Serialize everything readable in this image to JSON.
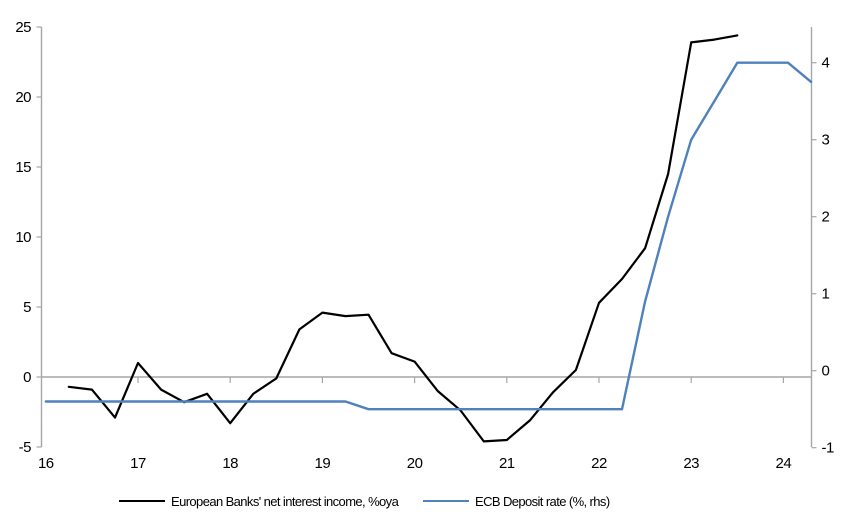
{
  "chart_data": {
    "type": "line",
    "title": "",
    "x_axis": {
      "ticks": [
        16,
        17,
        18,
        19,
        20,
        21,
        22,
        23,
        24
      ],
      "tick_labels": [
        "16",
        "17",
        "18",
        "19",
        "20",
        "21",
        "22",
        "23",
        "24"
      ],
      "range": [
        16,
        24.31
      ]
    },
    "left_axis": {
      "ticks": [
        -5,
        0,
        5,
        10,
        15,
        20,
        25
      ],
      "tick_labels": [
        "-5",
        "0",
        "5",
        "10",
        "15",
        "20",
        "25"
      ],
      "range": [
        -5,
        25
      ]
    },
    "right_axis": {
      "ticks": [
        -1,
        0,
        1,
        2,
        3,
        4
      ],
      "tick_labels": [
        "-1",
        "0",
        "1",
        "2",
        "3",
        "4"
      ],
      "range": [
        -1,
        4.45
      ]
    },
    "series": [
      {
        "name": "European Banks' net interest income, %oya",
        "axis": "left",
        "color": "#000000",
        "points": [
          [
            16.25,
            -0.7
          ],
          [
            16.5,
            -0.9
          ],
          [
            16.75,
            -2.9
          ],
          [
            17.0,
            1.0
          ],
          [
            17.25,
            -0.9
          ],
          [
            17.5,
            -1.8
          ],
          [
            17.75,
            -1.2
          ],
          [
            18.0,
            -3.3
          ],
          [
            18.25,
            -1.2
          ],
          [
            18.5,
            -0.1
          ],
          [
            18.75,
            3.4
          ],
          [
            19.0,
            4.6
          ],
          [
            19.25,
            4.35
          ],
          [
            19.5,
            4.45
          ],
          [
            19.75,
            1.7
          ],
          [
            20.0,
            1.1
          ],
          [
            20.25,
            -1.0
          ],
          [
            20.5,
            -2.4
          ],
          [
            20.75,
            -4.6
          ],
          [
            21.0,
            -4.5
          ],
          [
            21.25,
            -3.1
          ],
          [
            21.5,
            -1.1
          ],
          [
            21.75,
            0.5
          ],
          [
            22.0,
            5.3
          ],
          [
            22.25,
            7.0
          ],
          [
            22.5,
            9.2
          ],
          [
            22.75,
            14.5
          ],
          [
            23.0,
            23.9
          ],
          [
            23.25,
            24.1
          ],
          [
            23.5,
            24.4
          ]
        ]
      },
      {
        "name": "ECB Deposit rate (%, rhs)",
        "axis": "right",
        "color": "#4f81bd",
        "points": [
          [
            16.0,
            -0.4
          ],
          [
            19.25,
            -0.4
          ],
          [
            19.5,
            -0.5
          ],
          [
            22.25,
            -0.5
          ],
          [
            22.5,
            0.9
          ],
          [
            22.75,
            2.0
          ],
          [
            23.0,
            3.0
          ],
          [
            23.25,
            3.5
          ],
          [
            23.5,
            4.0
          ],
          [
            24.05,
            4.0
          ],
          [
            24.3,
            3.75
          ]
        ]
      }
    ],
    "legend": {
      "position": "bottom",
      "entries": [
        "European Banks' net interest income, %oya",
        "ECB Deposit rate (%, rhs)"
      ]
    },
    "grid": "zero-line-only",
    "colors": {
      "zero_line": "#a6a6a6",
      "axis": "#a6a6a6",
      "nii_line": "#000000",
      "ecb_line": "#4f81bd",
      "background": "#ffffff",
      "text": "#000000"
    }
  }
}
